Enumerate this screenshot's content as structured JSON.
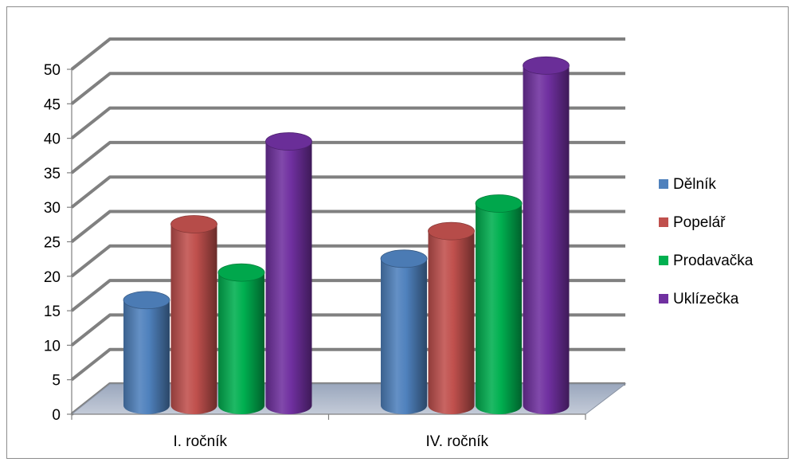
{
  "chart_data": {
    "type": "bar",
    "style": "3d-cylinder",
    "categories": [
      "I. ročník",
      "IV. ročník"
    ],
    "series": [
      {
        "name": "Dělník",
        "values": [
          14,
          20
        ],
        "color": "#4f81bd"
      },
      {
        "name": "Popelář",
        "values": [
          25,
          24
        ],
        "color": "#c0504d"
      },
      {
        "name": "Prodavačka",
        "values": [
          18,
          28
        ],
        "color": "#00b050"
      },
      {
        "name": "Uklízečka",
        "values": [
          37,
          48
        ],
        "color": "#7030a0"
      }
    ],
    "yticks": [
      "0",
      "5",
      "10",
      "15",
      "20",
      "25",
      "30",
      "35",
      "40",
      "45",
      "50"
    ],
    "ylim": [
      0,
      50
    ],
    "grid": true,
    "legend_position": "right"
  }
}
